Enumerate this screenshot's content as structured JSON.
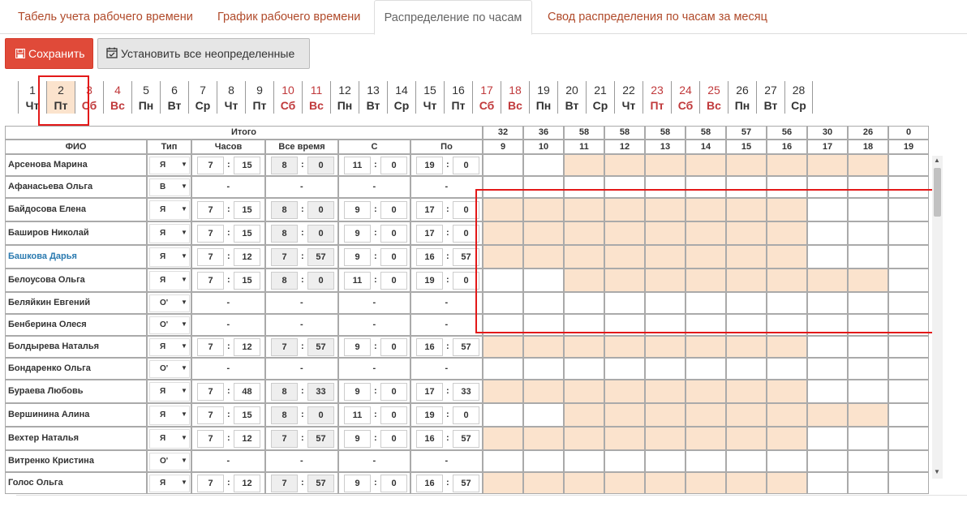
{
  "tabs": [
    "Табель учета рабочего времени",
    "График рабочего времени",
    "Распределение по часам",
    "Свод распределения по часам за месяц"
  ],
  "active_tab": 2,
  "toolbar": {
    "save_label": "Сохранить",
    "set_all_label": "Установить все неопределенные"
  },
  "days": [
    {
      "n": "1",
      "w": "Чт",
      "red": false
    },
    {
      "n": "2",
      "w": "Пт",
      "red": false,
      "selected": true
    },
    {
      "n": "3",
      "w": "Сб",
      "red": true
    },
    {
      "n": "4",
      "w": "Вс",
      "red": true
    },
    {
      "n": "5",
      "w": "Пн",
      "red": false
    },
    {
      "n": "6",
      "w": "Вт",
      "red": false
    },
    {
      "n": "7",
      "w": "Ср",
      "red": false
    },
    {
      "n": "8",
      "w": "Чт",
      "red": false
    },
    {
      "n": "9",
      "w": "Пт",
      "red": false
    },
    {
      "n": "10",
      "w": "Сб",
      "red": true
    },
    {
      "n": "11",
      "w": "Вс",
      "red": true
    },
    {
      "n": "12",
      "w": "Пн",
      "red": false
    },
    {
      "n": "13",
      "w": "Вт",
      "red": false
    },
    {
      "n": "14",
      "w": "Ср",
      "red": false
    },
    {
      "n": "15",
      "w": "Чт",
      "red": false
    },
    {
      "n": "16",
      "w": "Пт",
      "red": false
    },
    {
      "n": "17",
      "w": "Сб",
      "red": true
    },
    {
      "n": "18",
      "w": "Вс",
      "red": true
    },
    {
      "n": "19",
      "w": "Пн",
      "red": false
    },
    {
      "n": "20",
      "w": "Вт",
      "red": false
    },
    {
      "n": "21",
      "w": "Ср",
      "red": false
    },
    {
      "n": "22",
      "w": "Чт",
      "red": false
    },
    {
      "n": "23",
      "w": "Пт",
      "red": true
    },
    {
      "n": "24",
      "w": "Сб",
      "red": true
    },
    {
      "n": "25",
      "w": "Вс",
      "red": true
    },
    {
      "n": "26",
      "w": "Пн",
      "red": false
    },
    {
      "n": "27",
      "w": "Вт",
      "red": false
    },
    {
      "n": "28",
      "w": "Ср",
      "red": false
    }
  ],
  "table": {
    "itogo": "Итого",
    "cols": {
      "fio": "ФИО",
      "type": "Тип",
      "hours": "Часов",
      "all": "Все время",
      "from": "С",
      "to": "По"
    },
    "hour_totals": [
      "32",
      "36",
      "58",
      "58",
      "58",
      "58",
      "57",
      "56",
      "30",
      "26",
      "0"
    ],
    "hours": [
      "9",
      "10",
      "11",
      "12",
      "13",
      "14",
      "15",
      "16",
      "17",
      "18",
      "19"
    ],
    "highlight_color": "#fbe3cd",
    "rows": [
      {
        "name": "Арсенова Марина",
        "type": "Я",
        "h": [
          "7",
          "15"
        ],
        "a": [
          "8",
          "0"
        ],
        "s": [
          "11",
          "0"
        ],
        "p": [
          "19",
          "0"
        ],
        "fill": [
          0,
          0,
          1,
          1,
          1,
          1,
          1,
          1,
          1,
          1,
          0
        ]
      },
      {
        "name": "Афанасьева Ольга",
        "type": "В",
        "h": null,
        "fill": [
          0,
          0,
          0,
          0,
          0,
          0,
          0,
          0,
          0,
          0,
          0
        ]
      },
      {
        "name": "Байдосова Елена",
        "type": "Я",
        "h": [
          "7",
          "15"
        ],
        "a": [
          "8",
          "0"
        ],
        "s": [
          "9",
          "0"
        ],
        "p": [
          "17",
          "0"
        ],
        "fill": [
          1,
          1,
          1,
          1,
          1,
          1,
          1,
          1,
          0,
          0,
          0
        ]
      },
      {
        "name": "Баширов Николай",
        "type": "Я",
        "h": [
          "7",
          "15"
        ],
        "a": [
          "8",
          "0"
        ],
        "s": [
          "9",
          "0"
        ],
        "p": [
          "17",
          "0"
        ],
        "fill": [
          1,
          1,
          1,
          1,
          1,
          1,
          1,
          1,
          0,
          0,
          0
        ]
      },
      {
        "name": "Башкова Дарья",
        "type": "Я",
        "link": true,
        "h": [
          "7",
          "12"
        ],
        "a": [
          "7",
          "57"
        ],
        "s": [
          "9",
          "0"
        ],
        "p": [
          "16",
          "57"
        ],
        "fill": [
          1,
          1,
          1,
          1,
          1,
          1,
          1,
          1,
          0,
          0,
          0
        ]
      },
      {
        "name": "Белоусова Ольга",
        "type": "Я",
        "h": [
          "7",
          "15"
        ],
        "a": [
          "8",
          "0"
        ],
        "s": [
          "11",
          "0"
        ],
        "p": [
          "19",
          "0"
        ],
        "fill": [
          0,
          0,
          1,
          1,
          1,
          1,
          1,
          1,
          1,
          1,
          0
        ]
      },
      {
        "name": "Беляйкин Евгений",
        "type": "О'",
        "h": null,
        "fill": [
          0,
          0,
          0,
          0,
          0,
          0,
          0,
          0,
          0,
          0,
          0
        ]
      },
      {
        "name": "Бенберина Олеся",
        "type": "О'",
        "h": null,
        "fill": [
          0,
          0,
          0,
          0,
          0,
          0,
          0,
          0,
          0,
          0,
          0
        ]
      },
      {
        "name": "Болдырева Наталья",
        "type": "Я",
        "h": [
          "7",
          "12"
        ],
        "a": [
          "7",
          "57"
        ],
        "s": [
          "9",
          "0"
        ],
        "p": [
          "16",
          "57"
        ],
        "fill": [
          1,
          1,
          1,
          1,
          1,
          1,
          1,
          1,
          0,
          0,
          0
        ]
      },
      {
        "name": "Бондаренко Ольга",
        "type": "О'",
        "h": null,
        "fill": [
          0,
          0,
          0,
          0,
          0,
          0,
          0,
          0,
          0,
          0,
          0
        ]
      },
      {
        "name": "Бураева Любовь",
        "type": "Я",
        "h": [
          "7",
          "48"
        ],
        "a": [
          "8",
          "33"
        ],
        "s": [
          "9",
          "0"
        ],
        "p": [
          "17",
          "33"
        ],
        "fill": [
          1,
          1,
          1,
          1,
          1,
          1,
          1,
          1,
          0,
          0,
          0
        ]
      },
      {
        "name": "Вершинина Алина",
        "type": "Я",
        "h": [
          "7",
          "15"
        ],
        "a": [
          "8",
          "0"
        ],
        "s": [
          "11",
          "0"
        ],
        "p": [
          "19",
          "0"
        ],
        "fill": [
          0,
          0,
          1,
          1,
          1,
          1,
          1,
          1,
          1,
          1,
          0
        ]
      },
      {
        "name": "Вехтер Наталья",
        "type": "Я",
        "h": [
          "7",
          "12"
        ],
        "a": [
          "7",
          "57"
        ],
        "s": [
          "9",
          "0"
        ],
        "p": [
          "16",
          "57"
        ],
        "fill": [
          1,
          1,
          1,
          1,
          1,
          1,
          1,
          1,
          0,
          0,
          0
        ]
      },
      {
        "name": "Витренко Кристина",
        "type": "О'",
        "h": null,
        "fill": [
          0,
          0,
          0,
          0,
          0,
          0,
          0,
          0,
          0,
          0,
          0
        ]
      },
      {
        "name": "Голос Ольга",
        "type": "Я",
        "h": [
          "7",
          "12"
        ],
        "a": [
          "7",
          "57"
        ],
        "s": [
          "9",
          "0"
        ],
        "p": [
          "16",
          "57"
        ],
        "fill": [
          1,
          1,
          1,
          1,
          1,
          1,
          1,
          1,
          0,
          0,
          0
        ]
      }
    ]
  }
}
